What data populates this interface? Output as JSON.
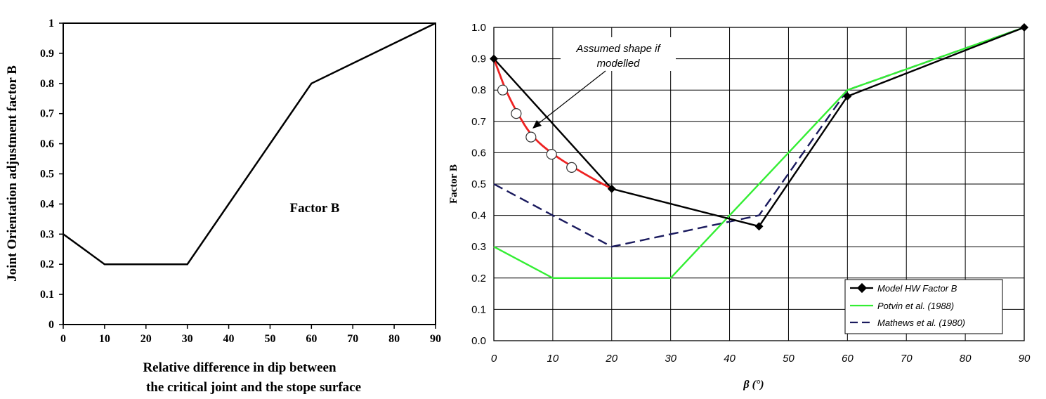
{
  "chart_data": [
    {
      "type": "line",
      "title": "",
      "annotation": "Factor B",
      "ylabel": "Joint Orientation adjustment factor B",
      "xlabel_lines": [
        "Relative difference in dip between",
        "the critical joint and the stope surface"
      ],
      "xlim": [
        0,
        90
      ],
      "ylim": [
        0,
        1
      ],
      "x_ticks": [
        0,
        10,
        20,
        30,
        40,
        50,
        60,
        70,
        80,
        90
      ],
      "x_tick_labels": [
        "0",
        "10",
        "20",
        "30",
        "40",
        "50",
        "60",
        "70",
        "80",
        "90"
      ],
      "y_ticks": [
        0,
        0.1,
        0.2,
        0.3,
        0.4,
        0.5,
        0.6,
        0.7,
        0.8,
        0.9,
        1
      ],
      "y_tick_labels": [
        "0",
        "0.1",
        "0.2",
        "0.3",
        "0.4",
        "0.5",
        "0.6",
        "0.7",
        "0.8",
        "0.9",
        "1"
      ],
      "grid": false,
      "series": [
        {
          "color": "#000000",
          "x": [
            0,
            10,
            30,
            60,
            90
          ],
          "y": [
            0.3,
            0.2,
            0.2,
            0.8,
            1.0
          ]
        }
      ]
    },
    {
      "type": "line",
      "title": "",
      "xlabel": "β (°)",
      "ylabel": "Factor B",
      "xlim": [
        0,
        90
      ],
      "ylim": [
        0,
        1
      ],
      "x_ticks": [
        0,
        10,
        20,
        30,
        40,
        50,
        60,
        70,
        80,
        90
      ],
      "x_tick_labels": [
        "0",
        "10",
        "20",
        "30",
        "40",
        "50",
        "60",
        "70",
        "80",
        "90"
      ],
      "y_ticks": [
        0,
        0.1,
        0.2,
        0.3,
        0.4,
        0.5,
        0.6,
        0.7,
        0.8,
        0.9,
        1
      ],
      "y_tick_labels": [
        "0.0",
        "0.1",
        "0.2",
        "0.3",
        "0.4",
        "0.5",
        "0.6",
        "0.7",
        "0.8",
        "0.9",
        "1.0"
      ],
      "grid": true,
      "legend_position": "bottom-right",
      "annotation_lines": [
        "Assumed shape if",
        "modelled"
      ],
      "series": [
        {
          "name": "Model HW Factor B",
          "color": "#000000",
          "style": "solid-diamond",
          "x": [
            0,
            20,
            45,
            60,
            90
          ],
          "y": [
            0.9,
            0.485,
            0.365,
            0.78,
            1.0
          ]
        },
        {
          "name": "Potvin et al. (1988)",
          "color": "#33ee33",
          "style": "solid",
          "x": [
            0,
            10,
            30,
            60,
            90
          ],
          "y": [
            0.3,
            0.2,
            0.2,
            0.8,
            1.0
          ]
        },
        {
          "name": "Mathews et al. (1980)",
          "color": "#1a1a5e",
          "style": "dashed",
          "x": [
            0,
            20,
            45,
            60,
            90
          ],
          "y": [
            0.5,
            0.3,
            0.4,
            0.8,
            1.0
          ]
        }
      ],
      "assumed_curve": {
        "color": "#ee2222",
        "x": [
          0,
          1,
          2,
          4,
          6.5,
          10,
          13.5,
          17,
          20
        ],
        "y": [
          0.9,
          0.85,
          0.8,
          0.725,
          0.65,
          0.595,
          0.553,
          0.515,
          0.485
        ]
      },
      "assumed_markers": {
        "x": [
          1.5,
          3.8,
          6.3,
          9.8,
          13.2
        ],
        "y": [
          0.8,
          0.725,
          0.65,
          0.595,
          0.553
        ]
      }
    }
  ]
}
